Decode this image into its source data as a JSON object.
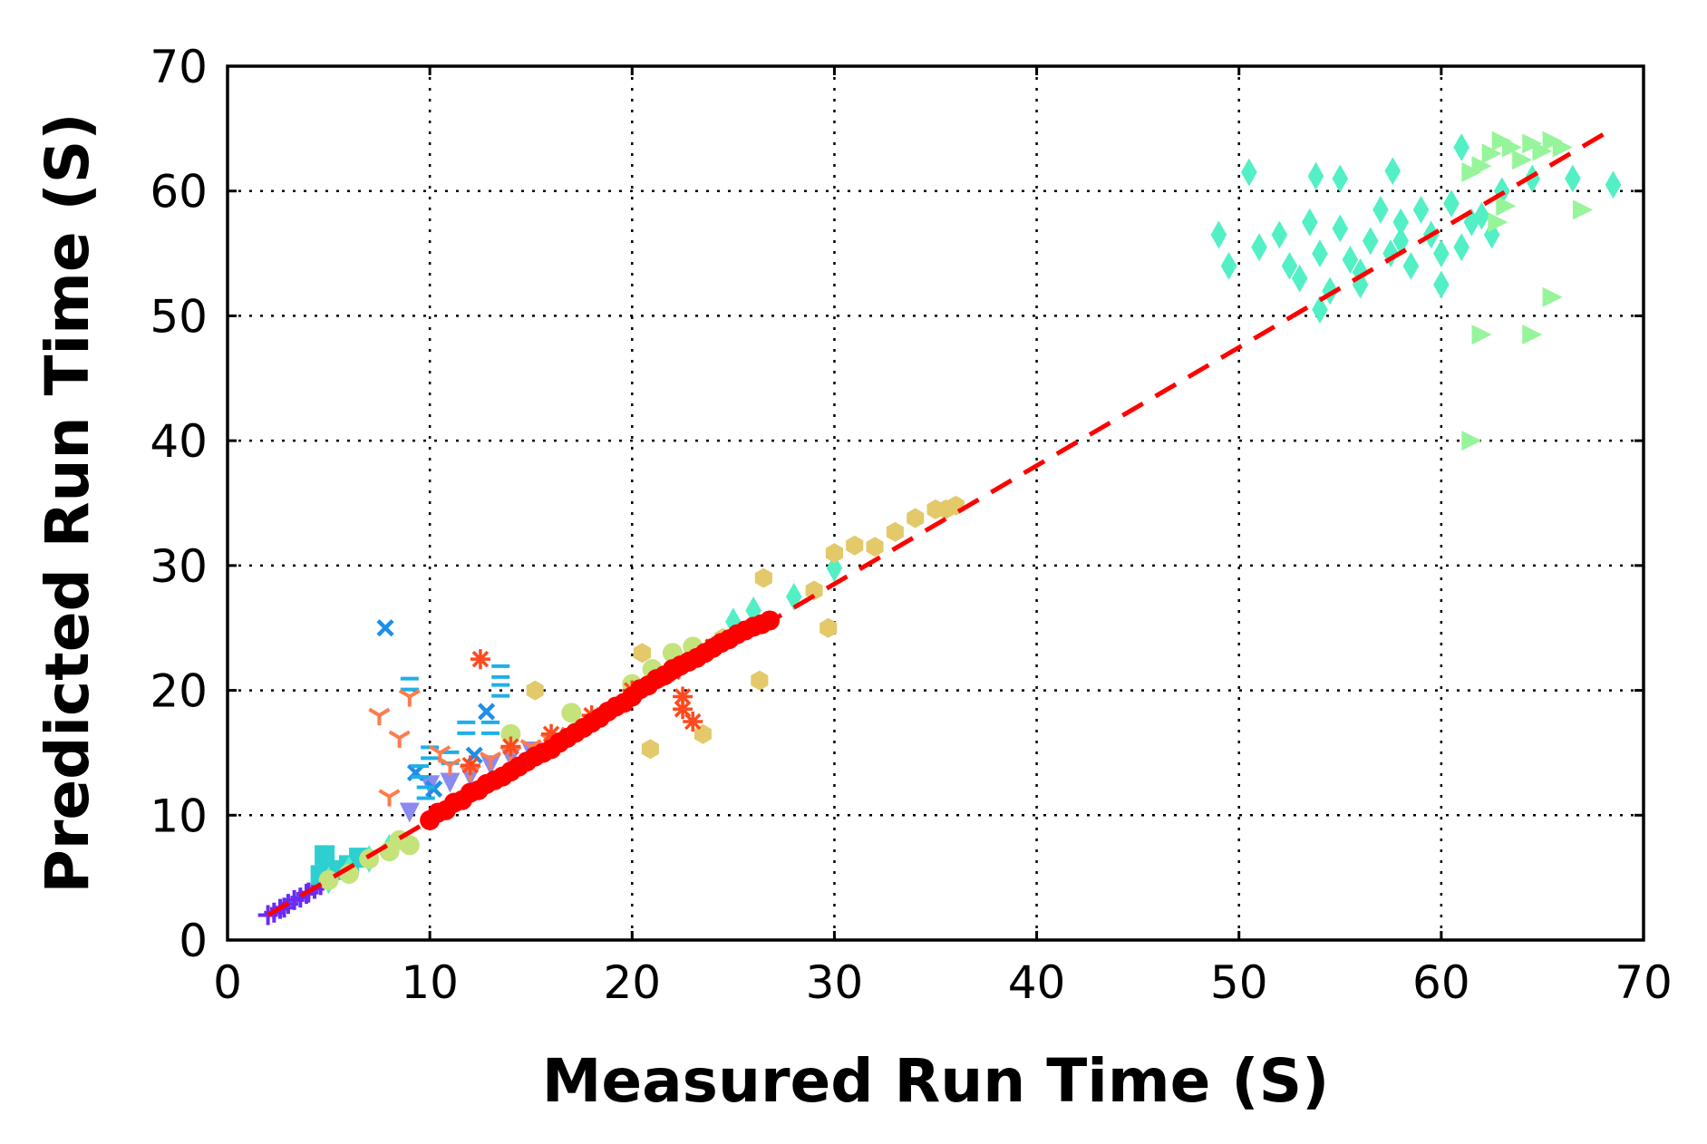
{
  "chart_data": {
    "type": "scatter",
    "title": "",
    "xlabel": "Measured Run Time (S)",
    "ylabel": "Predicted Run Time (S)",
    "xlim": [
      0,
      70
    ],
    "ylim": [
      0,
      70
    ],
    "xticks": [
      "0",
      "10",
      "20",
      "30",
      "40",
      "50",
      "60",
      "70"
    ],
    "yticks": [
      "0",
      "10",
      "20",
      "30",
      "40",
      "50",
      "60",
      "70"
    ],
    "grid": true,
    "legend": "none",
    "reference_line": {
      "style": "dashed",
      "color": "#ff0000",
      "x": [
        2,
        68.5
      ],
      "y": [
        2,
        65
      ]
    },
    "series": [
      {
        "marker": "plus",
        "color": "#6a2cf5",
        "points": [
          [
            2,
            2
          ],
          [
            2.3,
            2.2
          ],
          [
            2.6,
            2.5
          ],
          [
            3,
            2.9
          ],
          [
            3.3,
            3.2
          ],
          [
            3.6,
            3.4
          ],
          [
            4,
            3.8
          ],
          [
            4.3,
            4.1
          ],
          [
            4.6,
            4.4
          ],
          [
            2.8,
            2.6
          ],
          [
            3.9,
            3.7
          ]
        ]
      },
      {
        "marker": "triangle-down",
        "color": "#8a8af0",
        "points": [
          [
            9,
            10.2
          ],
          [
            10,
            12.4
          ],
          [
            12,
            13.1
          ],
          [
            13,
            14
          ],
          [
            14,
            14.6
          ],
          [
            15,
            15.1
          ],
          [
            11,
            12.6
          ]
        ]
      },
      {
        "marker": "x",
        "color": "#1f8ee8",
        "points": [
          [
            7.8,
            25
          ],
          [
            12.8,
            18.3
          ],
          [
            12.2,
            14.8
          ],
          [
            9.3,
            13.4
          ],
          [
            10.2,
            12.1
          ]
        ]
      },
      {
        "marker": "hline",
        "color": "#1eb0e6",
        "points": [
          [
            9,
            20.5
          ],
          [
            13.5,
            21.5
          ],
          [
            13.5,
            20
          ],
          [
            11.8,
            17
          ],
          [
            13,
            17
          ],
          [
            10,
            15
          ],
          [
            11,
            14.6
          ],
          [
            9.5,
            13.5
          ],
          [
            9.8,
            11.8
          ]
        ]
      },
      {
        "marker": "square",
        "color": "#2ecfd1",
        "points": [
          [
            4.8,
            6.8
          ],
          [
            4.6,
            5.2
          ],
          [
            5,
            5.5
          ],
          [
            5.5,
            5.6
          ],
          [
            6,
            6
          ],
          [
            6.5,
            6.6
          ]
        ]
      },
      {
        "marker": "diamond",
        "color": "#52f0c4",
        "points": [
          [
            5,
            4.8
          ],
          [
            6,
            5.6
          ],
          [
            7,
            6.5
          ],
          [
            8,
            7.4
          ],
          [
            25,
            25.5
          ],
          [
            26,
            26.4
          ],
          [
            28,
            27.5
          ],
          [
            30,
            29.8
          ],
          [
            50.5,
            61.5
          ],
          [
            53.8,
            61.2
          ],
          [
            55,
            61
          ],
          [
            57.6,
            61.6
          ],
          [
            49,
            56.5
          ],
          [
            49.5,
            54
          ],
          [
            51,
            55.5
          ],
          [
            52,
            56.5
          ],
          [
            52.5,
            54
          ],
          [
            53,
            53
          ],
          [
            53.5,
            57.5
          ],
          [
            54,
            55
          ],
          [
            54.5,
            52
          ],
          [
            55,
            57
          ],
          [
            55.5,
            54.5
          ],
          [
            56,
            52.5
          ],
          [
            56.5,
            56
          ],
          [
            57,
            58.5
          ],
          [
            57.5,
            55
          ],
          [
            58,
            57.5
          ],
          [
            58.5,
            54
          ],
          [
            59,
            58.5
          ],
          [
            59.5,
            56.5
          ],
          [
            60,
            55
          ],
          [
            60.5,
            59
          ],
          [
            61,
            55.5
          ],
          [
            61.5,
            57.5
          ],
          [
            62,
            58
          ],
          [
            63,
            60
          ],
          [
            64.5,
            61
          ],
          [
            66.5,
            61
          ],
          [
            68.5,
            60.5
          ],
          [
            54,
            50.5
          ],
          [
            60,
            52.5
          ],
          [
            56,
            53.5
          ],
          [
            58,
            56
          ],
          [
            62.5,
            56.5
          ],
          [
            61,
            63.5
          ]
        ]
      },
      {
        "marker": "triangle-right",
        "color": "#96f59a",
        "points": [
          [
            61.5,
            40
          ],
          [
            62,
            48.5
          ],
          [
            64.5,
            48.5
          ],
          [
            65.5,
            51.5
          ],
          [
            67,
            58.5
          ],
          [
            62,
            62
          ],
          [
            62.5,
            63
          ],
          [
            63,
            64
          ],
          [
            63.5,
            63.5
          ],
          [
            64,
            62.5
          ],
          [
            64.5,
            63.8
          ],
          [
            65,
            63.2
          ],
          [
            65.5,
            64
          ],
          [
            66,
            63.5
          ],
          [
            61.5,
            61.5
          ],
          [
            62.8,
            57.5
          ],
          [
            63.2,
            58.8
          ]
        ]
      },
      {
        "marker": "circle",
        "color": "#c4e37a",
        "points": [
          [
            5,
            4.8
          ],
          [
            6,
            5.3
          ],
          [
            7,
            6.5
          ],
          [
            8,
            7.1
          ],
          [
            9,
            7.6
          ],
          [
            8.5,
            8
          ],
          [
            14,
            16.5
          ],
          [
            17,
            18.2
          ],
          [
            20,
            20.5
          ],
          [
            21,
            21.7
          ],
          [
            22,
            23
          ],
          [
            23,
            23.5
          ]
        ]
      },
      {
        "marker": "hexagon",
        "color": "#e3c96a",
        "points": [
          [
            15.2,
            20
          ],
          [
            20.9,
            15.3
          ],
          [
            23.5,
            16.5
          ],
          [
            26.3,
            20.8
          ],
          [
            26.5,
            29
          ],
          [
            29.7,
            25
          ],
          [
            20.5,
            23
          ],
          [
            22.5,
            22
          ],
          [
            24.5,
            24.2
          ],
          [
            29,
            28
          ],
          [
            30,
            31
          ],
          [
            31,
            31.6
          ],
          [
            32,
            31.5
          ],
          [
            33,
            32.7
          ],
          [
            34,
            33.8
          ],
          [
            35,
            34.5
          ],
          [
            35.5,
            34.5
          ],
          [
            36,
            34.8
          ]
        ]
      },
      {
        "marker": "tri-down",
        "color": "#ff7b4b",
        "points": [
          [
            7.5,
            18
          ],
          [
            8,
            11.5
          ],
          [
            8.5,
            16.2
          ],
          [
            9,
            19.5
          ],
          [
            10.5,
            15
          ],
          [
            11,
            14
          ],
          [
            12,
            13.5
          ],
          [
            13,
            14.5
          ],
          [
            14,
            15
          ],
          [
            15,
            15.5
          ],
          [
            16,
            16
          ],
          [
            17,
            16.5
          ]
        ]
      },
      {
        "marker": "star",
        "color": "#ff4a1f",
        "points": [
          [
            12.5,
            22.5
          ],
          [
            22.5,
            18.5
          ],
          [
            22.5,
            19.5
          ],
          [
            23,
            17.5
          ],
          [
            12,
            14
          ],
          [
            14,
            15.5
          ],
          [
            16,
            16.5
          ],
          [
            18,
            18
          ],
          [
            20,
            20
          ],
          [
            22,
            21.5
          ],
          [
            24,
            23.5
          ]
        ]
      },
      {
        "marker": "circle",
        "color": "#ff0000",
        "points": [
          [
            10,
            9.6
          ],
          [
            10.8,
            10.4
          ],
          [
            11.6,
            11.2
          ],
          [
            12.4,
            12
          ],
          [
            13.2,
            12.8
          ],
          [
            14,
            13.5
          ],
          [
            14.8,
            14.3
          ],
          [
            15.6,
            15
          ],
          [
            16.4,
            15.8
          ],
          [
            17.2,
            16.6
          ],
          [
            18,
            17.4
          ],
          [
            18.8,
            18.3
          ],
          [
            19.6,
            19
          ],
          [
            20.4,
            20.1
          ],
          [
            21.2,
            20.9
          ],
          [
            22,
            21.7
          ],
          [
            22.8,
            22.3
          ],
          [
            23.6,
            23
          ],
          [
            24.4,
            23.8
          ],
          [
            25.2,
            24.5
          ],
          [
            26,
            25.1
          ],
          [
            26.8,
            25.6
          ],
          [
            10.4,
            10.2
          ],
          [
            11.2,
            11
          ],
          [
            12,
            11.8
          ],
          [
            12.8,
            12.5
          ],
          [
            13.6,
            13.1
          ],
          [
            14.4,
            13.9
          ],
          [
            15.2,
            14.7
          ],
          [
            16,
            15.3
          ],
          [
            16.8,
            16.2
          ],
          [
            17.6,
            17
          ],
          [
            18.4,
            17.8
          ],
          [
            19.2,
            18.7
          ],
          [
            20,
            19.5
          ],
          [
            20.8,
            20.4
          ],
          [
            21.6,
            21.2
          ],
          [
            22.4,
            22
          ],
          [
            23.2,
            22.6
          ],
          [
            24,
            23.4
          ],
          [
            24.8,
            24.1
          ],
          [
            25.6,
            24.8
          ],
          [
            26.4,
            25.3
          ]
        ]
      }
    ]
  }
}
